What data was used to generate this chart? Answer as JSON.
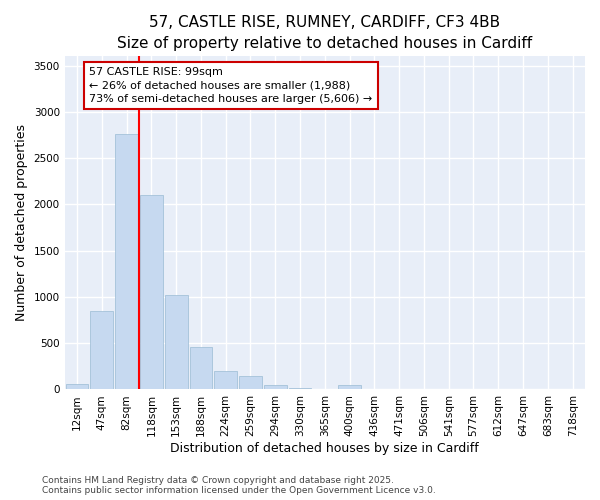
{
  "title_line1": "57, CASTLE RISE, RUMNEY, CARDIFF, CF3 4BB",
  "title_line2": "Size of property relative to detached houses in Cardiff",
  "xlabel": "Distribution of detached houses by size in Cardiff",
  "ylabel": "Number of detached properties",
  "bar_color": "#c6d9f0",
  "bar_edge_color": "#9bbbd4",
  "categories": [
    "12sqm",
    "47sqm",
    "82sqm",
    "118sqm",
    "153sqm",
    "188sqm",
    "224sqm",
    "259sqm",
    "294sqm",
    "330sqm",
    "365sqm",
    "400sqm",
    "436sqm",
    "471sqm",
    "506sqm",
    "541sqm",
    "577sqm",
    "612sqm",
    "647sqm",
    "683sqm",
    "718sqm"
  ],
  "values": [
    60,
    850,
    2760,
    2100,
    1020,
    460,
    200,
    145,
    50,
    15,
    5,
    50,
    10,
    5,
    2,
    1,
    1,
    0,
    0,
    0,
    0
  ],
  "ylim": [
    0,
    3600
  ],
  "yticks": [
    0,
    500,
    1000,
    1500,
    2000,
    2500,
    3000,
    3500
  ],
  "property_line_x": 2.5,
  "annotation_text_line1": "57 CASTLE RISE: 99sqm",
  "annotation_text_line2": "← 26% of detached houses are smaller (1,988)",
  "annotation_text_line3": "73% of semi-detached houses are larger (5,606) →",
  "footer_line1": "Contains HM Land Registry data © Crown copyright and database right 2025.",
  "footer_line2": "Contains public sector information licensed under the Open Government Licence v3.0.",
  "figure_bg_color": "#ffffff",
  "plot_bg_color": "#e8eef8",
  "grid_color": "#ffffff",
  "annotation_box_color": "#cc0000",
  "title_fontsize": 11,
  "subtitle_fontsize": 9.5,
  "axis_label_fontsize": 9,
  "tick_fontsize": 7.5,
  "footer_fontsize": 6.5,
  "annotation_fontsize": 8
}
